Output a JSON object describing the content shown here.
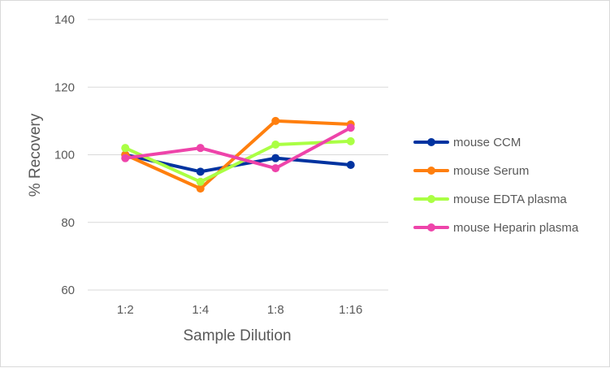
{
  "chart_data": {
    "type": "line",
    "title": "",
    "xlabel": "Sample Dilution",
    "ylabel": "% Recovery",
    "categories": [
      "1:2",
      "1:4",
      "1:8",
      "1:16"
    ],
    "ylim": [
      60,
      140
    ],
    "yticks": [
      60,
      80,
      100,
      120,
      140
    ],
    "grid": true,
    "legend_position": "right",
    "series": [
      {
        "name": "mouse CCM",
        "color": "#0033a0",
        "values": [
          100,
          95,
          99,
          97
        ]
      },
      {
        "name": "mouse Serum",
        "color": "#ff7f0e",
        "values": [
          100,
          90,
          110,
          109
        ]
      },
      {
        "name": "mouse EDTA plasma",
        "color": "#aaff44",
        "values": [
          102,
          92,
          103,
          104
        ]
      },
      {
        "name": "mouse Heparin plasma",
        "color": "#ee44aa",
        "values": [
          99,
          102,
          96,
          108
        ]
      }
    ]
  }
}
